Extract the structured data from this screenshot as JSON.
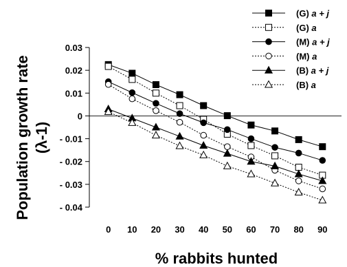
{
  "chart_data": {
    "type": "line",
    "x": [
      0,
      10,
      20,
      30,
      40,
      50,
      60,
      70,
      80,
      90
    ],
    "x_tick_labels": [
      "0",
      "10",
      "20",
      "30",
      "40",
      "50",
      "60",
      "70",
      "80",
      "90"
    ],
    "xlim": [
      -8,
      98
    ],
    "ylim": [
      -0.04,
      0.03
    ],
    "y_ticks": [
      0.03,
      0.02,
      0.01,
      0,
      -0.01,
      -0.02,
      -0.03,
      -0.04
    ],
    "y_tick_labels": [
      "0.03",
      "0.02",
      "0.01",
      "0",
      "- 0.01",
      "- 0.02",
      "- 0.03",
      "- 0.04"
    ],
    "xlabel": "% rabbits hunted",
    "ylabel_line1": "Population growth rate",
    "ylabel_line2": "(λ-1)",
    "legend_position": "top-right",
    "grid": false,
    "series": [
      {
        "name": "(G) a + j",
        "prefix": "(G) ",
        "abbr": "a + j",
        "marker": "square",
        "filled": true,
        "dash": "solid",
        "values": [
          0.0225,
          0.0187,
          0.0137,
          0.0093,
          0.0045,
          0.0001,
          -0.004,
          -0.0066,
          -0.0104,
          -0.0135
        ]
      },
      {
        "name": "(G) a",
        "prefix": "(G) ",
        "abbr": "a",
        "marker": "square",
        "filled": false,
        "dash": "dotted",
        "values": [
          0.0217,
          0.016,
          0.01,
          0.0045,
          -0.0015,
          -0.008,
          -0.013,
          -0.0175,
          -0.0225,
          -0.026
        ]
      },
      {
        "name": "(M) a + j",
        "prefix": "(M) ",
        "abbr": "a + j",
        "marker": "circle",
        "filled": true,
        "dash": "solid",
        "values": [
          0.015,
          0.0102,
          0.0055,
          0.001,
          -0.003,
          -0.006,
          -0.01,
          -0.0138,
          -0.0163,
          -0.0195
        ]
      },
      {
        "name": "(M) a",
        "prefix": "(M) ",
        "abbr": "a",
        "marker": "circle",
        "filled": false,
        "dash": "dotted",
        "values": [
          0.0138,
          0.0075,
          0.0023,
          -0.0028,
          -0.0085,
          -0.0135,
          -0.018,
          -0.0238,
          -0.0285,
          -0.032
        ]
      },
      {
        "name": "(B) a + j",
        "prefix": "(B) ",
        "abbr": "a + j",
        "marker": "triangle",
        "filled": true,
        "dash": "solid",
        "values": [
          0.003,
          -0.001,
          -0.005,
          -0.009,
          -0.013,
          -0.0165,
          -0.02,
          -0.022,
          -0.0255,
          -0.0285
        ]
      },
      {
        "name": "(B) a",
        "prefix": "(B) ",
        "abbr": "a",
        "marker": "triangle",
        "filled": false,
        "dash": "dotted",
        "values": [
          0.0018,
          -0.003,
          -0.0085,
          -0.0132,
          -0.0172,
          -0.022,
          -0.0255,
          -0.0295,
          -0.0335,
          -0.037
        ]
      }
    ]
  }
}
